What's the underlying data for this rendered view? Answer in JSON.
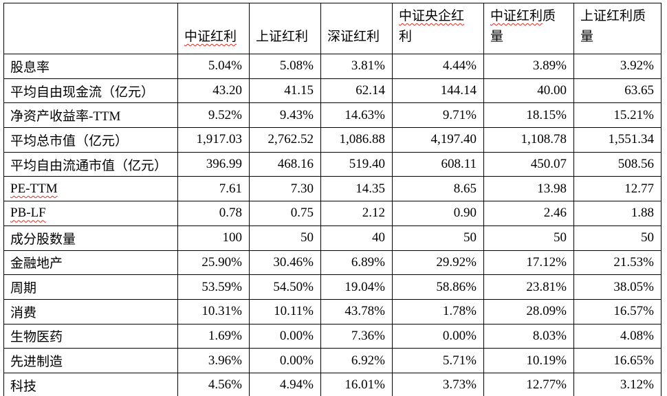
{
  "colors": {
    "background": "#ffffff",
    "text": "#000000",
    "table_border": "#000000",
    "spellcheck_underline": "#e02b1d"
  },
  "table": {
    "headers": [
      {
        "lines": [
          [
            {
              "text": "",
              "squiggle": false
            }
          ]
        ]
      },
      {
        "lines": [
          [
            {
              "text": "中证红利",
              "squiggle": true
            }
          ]
        ]
      },
      {
        "lines": [
          [
            {
              "text": "上证红利",
              "squiggle": false
            }
          ]
        ]
      },
      {
        "lines": [
          [
            {
              "text": "深证红利",
              "squiggle": false
            }
          ]
        ]
      },
      {
        "lines": [
          [
            {
              "text": "中证央企红",
              "squiggle": true
            }
          ],
          [
            {
              "text": "利",
              "squiggle": false
            }
          ]
        ]
      },
      {
        "lines": [
          [
            {
              "text": "中证红利",
              "squiggle": true
            },
            {
              "text": "质",
              "squiggle": false
            }
          ],
          [
            {
              "text": "量",
              "squiggle": false
            }
          ]
        ]
      },
      {
        "lines": [
          [
            {
              "text": "上证红利质",
              "squiggle": false
            }
          ],
          [
            {
              "text": "量",
              "squiggle": false
            }
          ]
        ]
      }
    ],
    "rows": [
      {
        "label": {
          "text": "股息率",
          "squiggle": false
        },
        "values": [
          "5.04%",
          "5.08%",
          "3.81%",
          "4.44%",
          "3.89%",
          "3.92%"
        ]
      },
      {
        "label": {
          "text": "平均自由现金流（亿元）",
          "squiggle": false
        },
        "values": [
          "43.20",
          "41.15",
          "62.14",
          "144.14",
          "40.00",
          "63.65"
        ]
      },
      {
        "label": {
          "text": "净资产收益率-TTM",
          "squiggle": false
        },
        "values": [
          "9.52%",
          "9.43%",
          "14.63%",
          "9.71%",
          "18.15%",
          "15.21%"
        ]
      },
      {
        "label": {
          "text": "平均总市值（亿元）",
          "squiggle": false
        },
        "values": [
          "1,917.03",
          "2,762.52",
          "1,086.88",
          "4,197.40",
          "1,108.78",
          "1,551.34"
        ]
      },
      {
        "label": {
          "text": "平均自由流通市值（亿元）",
          "squiggle": false
        },
        "values": [
          "396.99",
          "468.16",
          "519.40",
          "608.11",
          "450.07",
          "508.56"
        ]
      },
      {
        "label": {
          "text": "PE-TTM",
          "squiggle": true
        },
        "values": [
          "7.61",
          "7.30",
          "14.35",
          "8.65",
          "13.98",
          "12.77"
        ]
      },
      {
        "label": {
          "text": "PB-LF",
          "squiggle": true
        },
        "values": [
          "0.78",
          "0.75",
          "2.12",
          "0.90",
          "2.46",
          "1.88"
        ]
      },
      {
        "label": {
          "text": "成分股数量",
          "squiggle": false
        },
        "values": [
          "100",
          "50",
          "40",
          "50",
          "50",
          "50"
        ]
      },
      {
        "label": {
          "text": "金融地产",
          "squiggle": false
        },
        "values": [
          "25.90%",
          "30.46%",
          "6.89%",
          "29.92%",
          "17.12%",
          "21.53%"
        ]
      },
      {
        "label": {
          "text": "周期",
          "squiggle": false
        },
        "values": [
          "53.59%",
          "54.50%",
          "19.04%",
          "58.86%",
          "23.81%",
          "38.05%"
        ]
      },
      {
        "label": {
          "text": "消费",
          "squiggle": false
        },
        "values": [
          "10.31%",
          "10.11%",
          "43.78%",
          "1.78%",
          "28.09%",
          "16.57%"
        ]
      },
      {
        "label": {
          "text": "生物医药",
          "squiggle": false
        },
        "values": [
          "1.69%",
          "0.00%",
          "7.36%",
          "0.00%",
          "8.03%",
          "4.08%"
        ]
      },
      {
        "label": {
          "text": "先进制造",
          "squiggle": false
        },
        "values": [
          "3.96%",
          "0.00%",
          "6.92%",
          "5.71%",
          "10.19%",
          "16.65%"
        ]
      },
      {
        "label": {
          "text": "科技",
          "squiggle": false
        },
        "values": [
          "4.56%",
          "4.94%",
          "16.01%",
          "3.73%",
          "12.77%",
          "3.12%"
        ]
      }
    ]
  }
}
